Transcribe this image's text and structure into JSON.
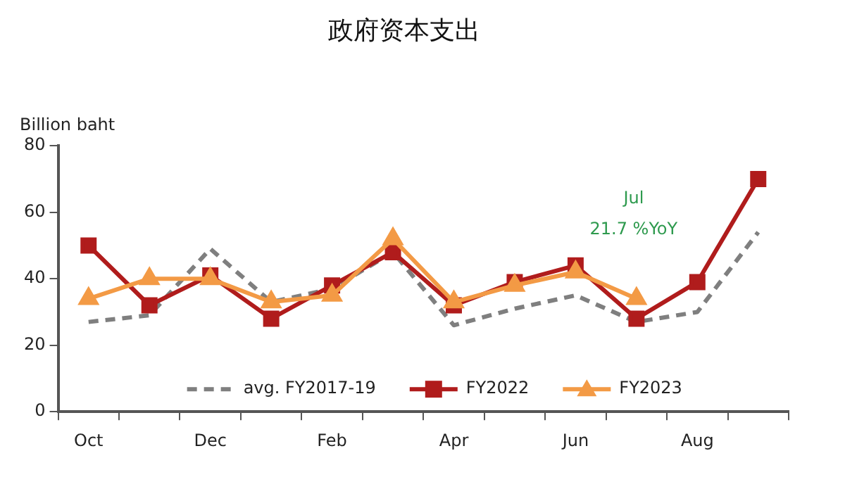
{
  "chart_data": {
    "type": "line",
    "title": "政府资本支出",
    "ylabel": "Billion baht",
    "categories": [
      "Oct",
      null,
      "Dec",
      null,
      "Feb",
      null,
      "Apr",
      null,
      "Jun",
      null,
      "Aug",
      null
    ],
    "series": [
      {
        "name": "avg. FY2017-19",
        "color": "#7f7f7f",
        "marker": "none",
        "line_style": "dashed",
        "values": [
          27,
          29,
          49,
          33,
          37,
          48,
          26,
          31,
          35,
          27,
          30,
          54
        ]
      },
      {
        "name": "FY2022",
        "color": "#b01c1c",
        "marker": "square",
        "line_style": "solid",
        "values": [
          50,
          32,
          41,
          28,
          38,
          48,
          32,
          39,
          44,
          28,
          39,
          70
        ]
      },
      {
        "name": "FY2023",
        "color": "#f39a45",
        "marker": "triangle",
        "line_style": "solid",
        "values": [
          34,
          40,
          40,
          33,
          35,
          52,
          33,
          38,
          42,
          34,
          null,
          null
        ]
      }
    ],
    "annotations": [
      "Jul",
      "21.7 %YoY"
    ],
    "ylim": [
      0,
      80
    ],
    "yticks": [
      0,
      20,
      40,
      60,
      80
    ],
    "grid": false,
    "legend": "bottom"
  }
}
